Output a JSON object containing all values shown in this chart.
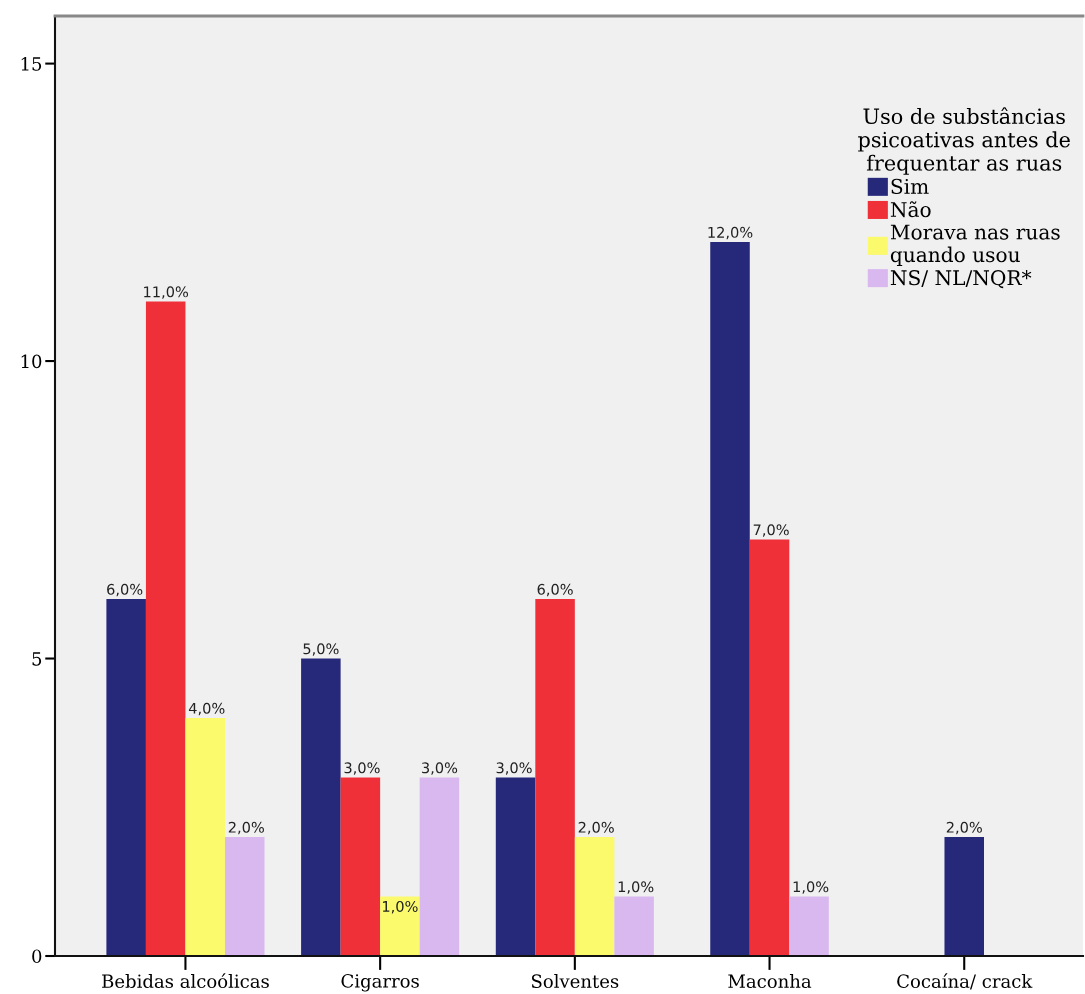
{
  "chart_data": {
    "type": "bar",
    "categories": [
      "Bebidas alcoólicas",
      "Cigarros",
      "Solventes",
      "Maconha",
      "Cocaína/ crack"
    ],
    "series": [
      {
        "name": "Sim",
        "color": "#26297a",
        "values": [
          6,
          5,
          3,
          12,
          2
        ],
        "value_labels": [
          "6,0%",
          "5,0%",
          "3,0%",
          "12,0%",
          "2,0%"
        ]
      },
      {
        "name": "Não",
        "color": "#ef3038",
        "values": [
          11,
          3,
          6,
          7,
          null
        ],
        "value_labels": [
          "11,0%",
          "3,0%",
          "6,0%",
          "7,0%",
          null
        ]
      },
      {
        "name": "Morava nas ruas\nquando usou",
        "color": "#fafa6c",
        "values": [
          4,
          1,
          2,
          null,
          null
        ],
        "value_labels": [
          "4,0%",
          "1,0%",
          "2,0%",
          null,
          null
        ]
      },
      {
        "name": "NS/ NL/NQR*",
        "color": "#d9b8f0",
        "values": [
          2,
          3,
          1,
          1,
          null
        ],
        "value_labels": [
          "2,0%",
          "3,0%",
          "1,0%",
          "1,0%",
          null
        ]
      }
    ],
    "ylim": [
      0,
      15.8
    ],
    "yticks": [
      0,
      5,
      10,
      15
    ],
    "legend": "top right",
    "legend_title": "Uso de substâncias\npsicoativas antes de\nfrequentar as ruas"
  }
}
